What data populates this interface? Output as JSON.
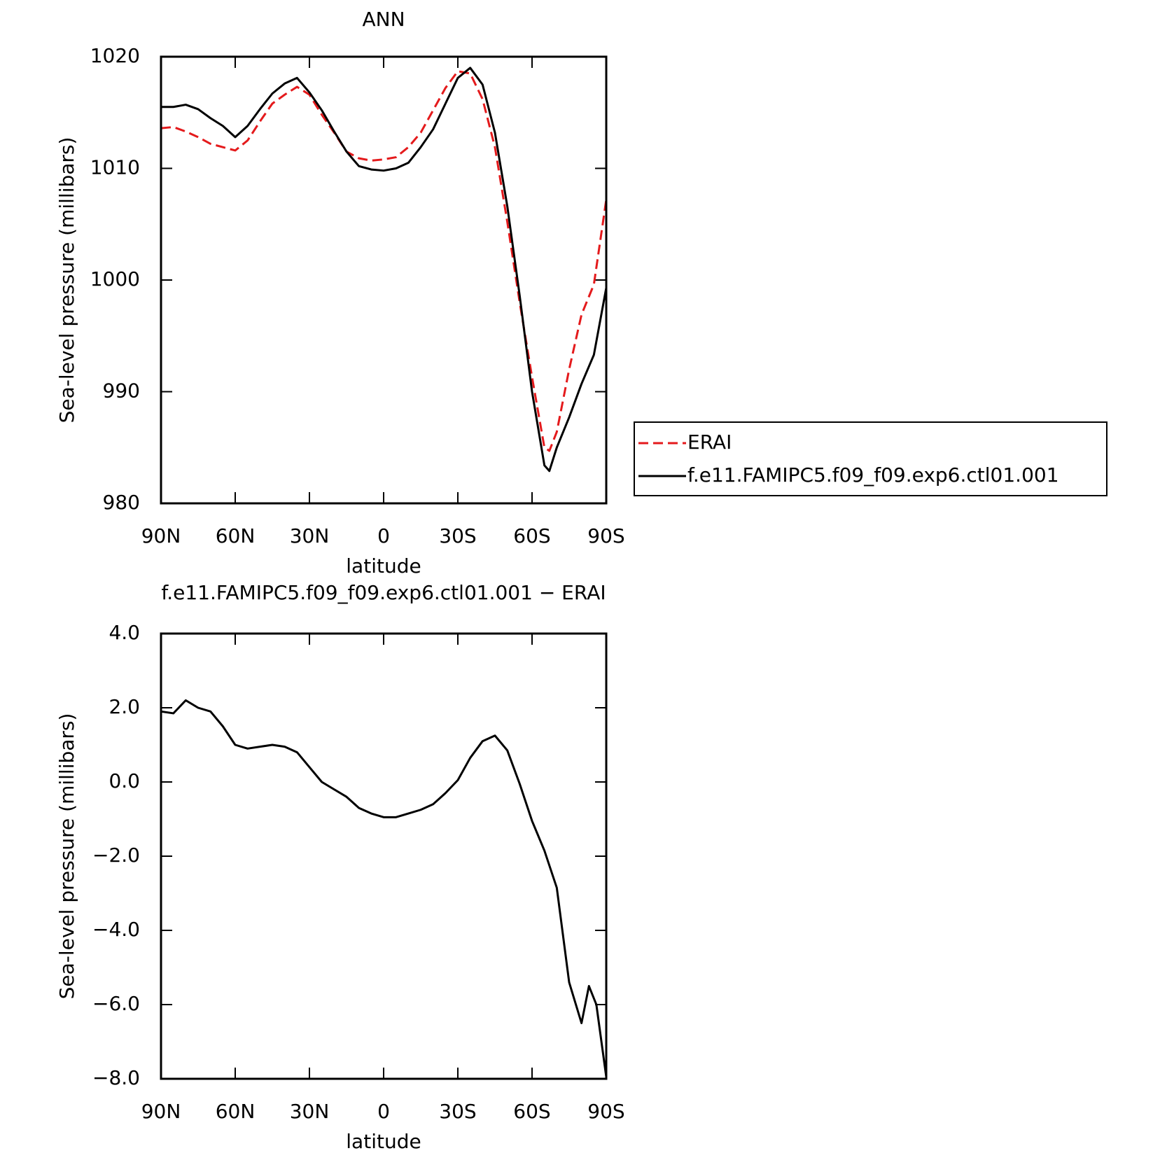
{
  "chart_data": [
    {
      "type": "line",
      "title": "ANN",
      "xlabel": "latitude",
      "ylabel": "Sea-level pressure (millibars)",
      "x": [
        90,
        85,
        80,
        75,
        70,
        65,
        60,
        55,
        50,
        45,
        40,
        35,
        30,
        25,
        20,
        15,
        10,
        5,
        0,
        -5,
        -10,
        -15,
        -20,
        -25,
        -30,
        -35,
        -40,
        -45,
        -50,
        -55,
        -60,
        -65,
        -67,
        -70,
        -75,
        -80,
        -85,
        -90
      ],
      "series": [
        {
          "name": "ERAI",
          "color": "#e41a1c",
          "style": "dashed",
          "values": [
            1013.6,
            1013.7,
            1013.3,
            1012.8,
            1012.2,
            1011.9,
            1011.6,
            1012.5,
            1014.2,
            1015.8,
            1016.6,
            1017.3,
            1016.6,
            1014.8,
            1013.2,
            1011.5,
            1010.9,
            1010.7,
            1010.8,
            1011.0,
            1011.9,
            1013.2,
            1015.2,
            1017.2,
            1018.7,
            1018.5,
            1016.2,
            1011.9,
            1005.2,
            998.0,
            991.3,
            985.0,
            984.7,
            986.4,
            992.0,
            996.9,
            999.6,
            1007.2
          ]
        },
        {
          "name": "f.e11.FAMIPC5.f09_f09.exp6.ctl01.001",
          "color": "#000000",
          "style": "solid",
          "values": [
            1015.5,
            1015.5,
            1015.7,
            1015.3,
            1014.5,
            1013.8,
            1012.8,
            1013.8,
            1015.3,
            1016.7,
            1017.6,
            1018.1,
            1016.8,
            1015.2,
            1013.3,
            1011.5,
            1010.2,
            1009.9,
            1009.8,
            1010.0,
            1010.5,
            1011.9,
            1013.5,
            1015.8,
            1018.1,
            1019.0,
            1017.5,
            1013.2,
            1006.6,
            998.6,
            990.0,
            983.4,
            982.9,
            985.0,
            987.7,
            990.7,
            993.3,
            999.3
          ]
        }
      ],
      "xlim": [
        90,
        -90
      ],
      "xticks": [
        {
          "value": 90,
          "label": "90N"
        },
        {
          "value": 60,
          "label": "60N"
        },
        {
          "value": 30,
          "label": "30N"
        },
        0,
        {
          "value": -30,
          "label": "30S"
        },
        {
          "value": -60,
          "label": "60S"
        },
        {
          "value": -90,
          "label": "90S"
        }
      ],
      "ylim": [
        980,
        1020
      ],
      "yticks": [
        980,
        990,
        1000,
        1010,
        1020
      ],
      "legend": "right"
    },
    {
      "type": "line",
      "title": "f.e11.FAMIPC5.f09_f09.exp6.ctl01.001 − ERAI",
      "xlabel": "latitude",
      "ylabel": "Sea-level pressure (millibars)",
      "x": [
        90,
        85,
        80,
        75,
        70,
        65,
        60,
        55,
        50,
        45,
        40,
        35,
        30,
        25,
        20,
        15,
        10,
        5,
        0,
        -5,
        -10,
        -15,
        -20,
        -25,
        -30,
        -35,
        -40,
        -45,
        -50,
        -55,
        -60,
        -65,
        -70,
        -75,
        -80,
        -83,
        -86,
        -90
      ],
      "values": [
        1.9,
        1.85,
        2.2,
        2.0,
        1.9,
        1.5,
        1.0,
        0.9,
        0.95,
        1.0,
        0.95,
        0.8,
        0.4,
        0.0,
        -0.2,
        -0.4,
        -0.7,
        -0.85,
        -0.95,
        -0.95,
        -0.85,
        -0.75,
        -0.6,
        -0.3,
        0.05,
        0.65,
        1.1,
        1.25,
        0.85,
        -0.05,
        -1.05,
        -1.85,
        -2.85,
        -5.4,
        -6.5,
        -5.5,
        -6.0,
        -7.95
      ],
      "color": "#000000",
      "xlim": [
        90,
        -90
      ],
      "xticks": [
        {
          "value": 90,
          "label": "90N"
        },
        {
          "value": 60,
          "label": "60N"
        },
        {
          "value": 30,
          "label": "30N"
        },
        0,
        {
          "value": -30,
          "label": "30S"
        },
        {
          "value": -60,
          "label": "60S"
        },
        {
          "value": -90,
          "label": "90S"
        }
      ],
      "ylim": [
        -8,
        4
      ],
      "yticks": [
        {
          "value": -8,
          "label": "−8.0"
        },
        {
          "value": -6,
          "label": "−6.0"
        },
        {
          "value": -4,
          "label": "−4.0"
        },
        {
          "value": -2,
          "label": "−2.0"
        },
        {
          "value": 0,
          "label": "0.0"
        },
        {
          "value": 2,
          "label": "2.0"
        },
        {
          "value": 4,
          "label": "4.0"
        }
      ]
    }
  ]
}
